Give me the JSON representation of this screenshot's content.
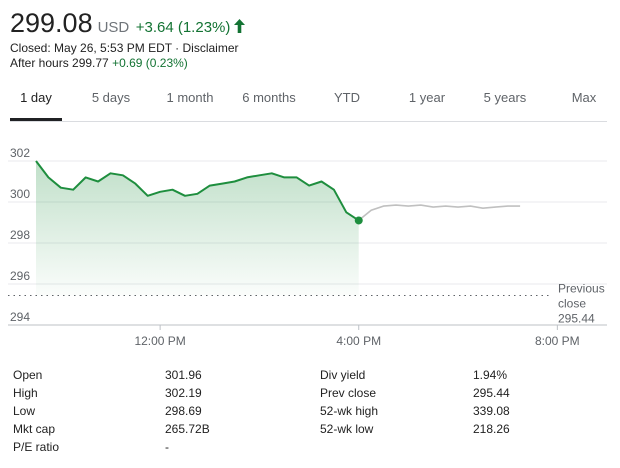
{
  "quote": {
    "price": "299.08",
    "currency": "USD",
    "change": "+3.64 (1.23%)",
    "status": "Closed: May 26, 5:53 PM EDT · Disclaimer",
    "after_hours_label": "After hours 299.77",
    "after_hours_change": "+0.69 (0.23%)",
    "up_color": "#137333",
    "arrow_icon": "arrow-up-icon"
  },
  "tabs": [
    {
      "label": "1 day",
      "active": true
    },
    {
      "label": "5 days"
    },
    {
      "label": "1 month"
    },
    {
      "label": "6 months"
    },
    {
      "label": "YTD"
    },
    {
      "label": "1 year"
    },
    {
      "label": "5 years"
    },
    {
      "label": "Max"
    }
  ],
  "chart_data": {
    "type": "line",
    "y_ticks": [
      "302",
      "300",
      "298",
      "296",
      "294"
    ],
    "x_ticks": [
      "12:00 PM",
      "4:00 PM",
      "8:00 PM"
    ],
    "ylim": [
      294,
      302
    ],
    "xlim": [
      9.5,
      21.0
    ],
    "grid": true,
    "previous_close_label": [
      "Previous",
      "close",
      "295.44"
    ],
    "previous_close": 295.44,
    "line_color": "#1e8e3e",
    "after_hours_color": "#c0c0c0",
    "series": [
      {
        "session": "regular",
        "x": [
          9.5,
          9.75,
          10.0,
          10.25,
          10.5,
          10.75,
          11.0,
          11.25,
          11.5,
          11.75,
          12.0,
          12.25,
          12.5,
          12.75,
          13.0,
          13.25,
          13.5,
          13.75,
          14.0,
          14.25,
          14.5,
          14.75,
          15.0,
          15.25,
          15.5,
          15.75,
          16.0
        ],
        "y": [
          302.0,
          301.2,
          300.7,
          300.6,
          301.2,
          301.0,
          301.4,
          301.3,
          300.9,
          300.3,
          300.5,
          300.6,
          300.3,
          300.4,
          300.8,
          300.9,
          301.0,
          301.2,
          301.3,
          301.4,
          301.2,
          301.2,
          300.8,
          301.0,
          300.6,
          299.5,
          299.1
        ]
      },
      {
        "session": "after_hours",
        "x": [
          16.0,
          16.25,
          16.5,
          16.75,
          17.0,
          17.25,
          17.5,
          17.75,
          18.0,
          18.25,
          18.5,
          18.75,
          19.0,
          19.25
        ],
        "y": [
          299.1,
          299.6,
          299.8,
          299.85,
          299.8,
          299.85,
          299.75,
          299.8,
          299.75,
          299.8,
          299.7,
          299.75,
          299.8,
          299.8
        ]
      }
    ]
  },
  "stats": {
    "left": [
      {
        "k": "Open",
        "v": "301.96"
      },
      {
        "k": "High",
        "v": "302.19"
      },
      {
        "k": "Low",
        "v": "298.69"
      },
      {
        "k": "Mkt cap",
        "v": "265.72B"
      },
      {
        "k": "P/E ratio",
        "v": "-"
      }
    ],
    "right": [
      {
        "k": "Div yield",
        "v": "1.94%"
      },
      {
        "k": "Prev close",
        "v": "295.44"
      },
      {
        "k": "52-wk high",
        "v": "339.08"
      },
      {
        "k": "52-wk low",
        "v": "218.26"
      }
    ]
  }
}
